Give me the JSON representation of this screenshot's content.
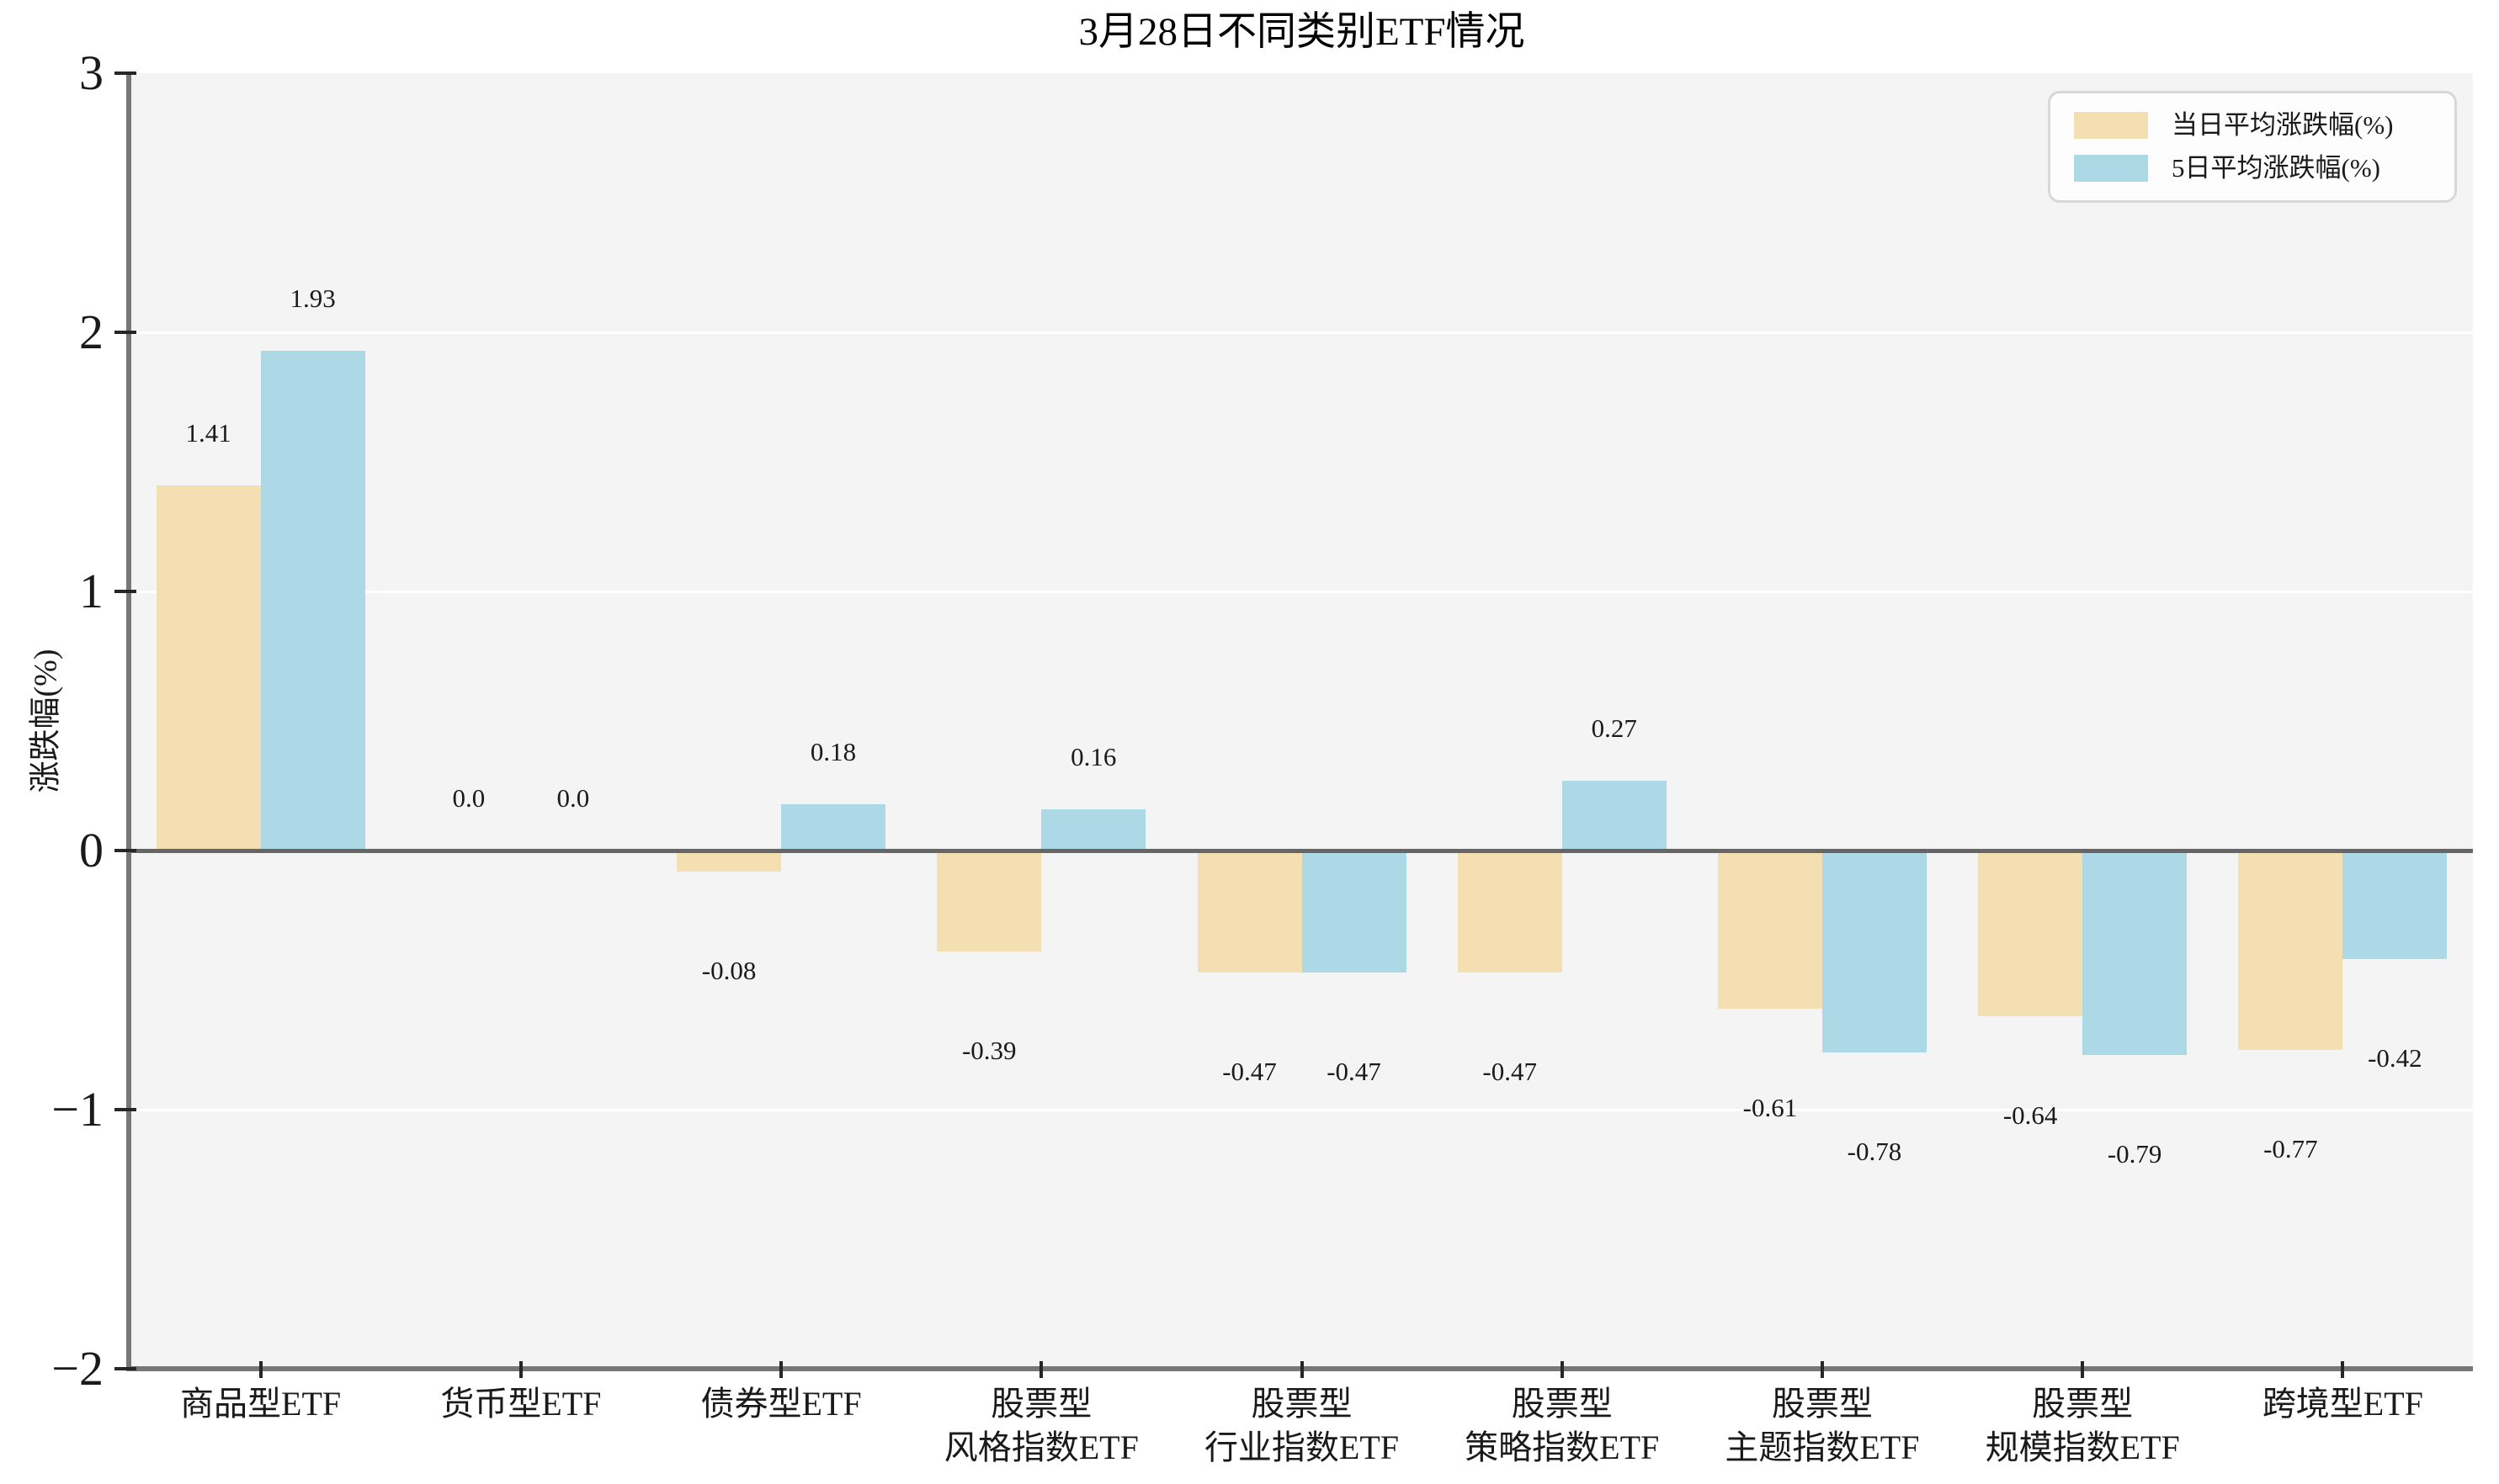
{
  "figure": {
    "background": "#ffffff",
    "plot_background": "#f4f4f4"
  },
  "chart_data": {
    "type": "bar",
    "title": "3月28日不同类别ETF情况",
    "xlabel": "",
    "ylabel": "涨跌幅(%)",
    "ylim": [
      -2,
      3
    ],
    "yticks": [
      3,
      2,
      1,
      0,
      -1,
      -2
    ],
    "ytick_labels": [
      "3",
      "2",
      "1",
      "0",
      "−1",
      "−2"
    ],
    "grid": true,
    "legend_position": "upper right",
    "categories": [
      "商品型ETF",
      "货币型ETF",
      "债券型ETF",
      "股票型\n风格指数ETF",
      "股票型\n行业指数ETF",
      "股票型\n策略指数ETF",
      "股票型\n主题指数ETF",
      "股票型\n规模指数ETF",
      "跨境型ETF"
    ],
    "series": [
      {
        "name": "当日平均涨跌幅(%)",
        "color": "#f3dfb2",
        "values": [
          1.41,
          0.0,
          -0.08,
          -0.39,
          -0.47,
          -0.47,
          -0.61,
          -0.64,
          -0.77
        ],
        "labels": [
          "1.41",
          "0.0",
          "-0.08",
          "-0.39",
          "-0.47",
          "-0.47",
          "-0.61",
          "-0.64",
          "-0.77"
        ]
      },
      {
        "name": "5日平均涨跌幅(%)",
        "color": "#add8e6",
        "values": [
          1.93,
          0.0,
          0.18,
          0.16,
          -0.47,
          0.27,
          -0.78,
          -0.79,
          -0.42
        ],
        "labels": [
          "1.93",
          "0.0",
          "0.18",
          "0.16",
          "-0.47",
          "0.27",
          "-0.78",
          "-0.79",
          "-0.42"
        ]
      }
    ],
    "axis_colors": {
      "spine": "#777777",
      "zero_line": "#666666",
      "tick": "#262626",
      "gridline": "#ffffff"
    }
  }
}
